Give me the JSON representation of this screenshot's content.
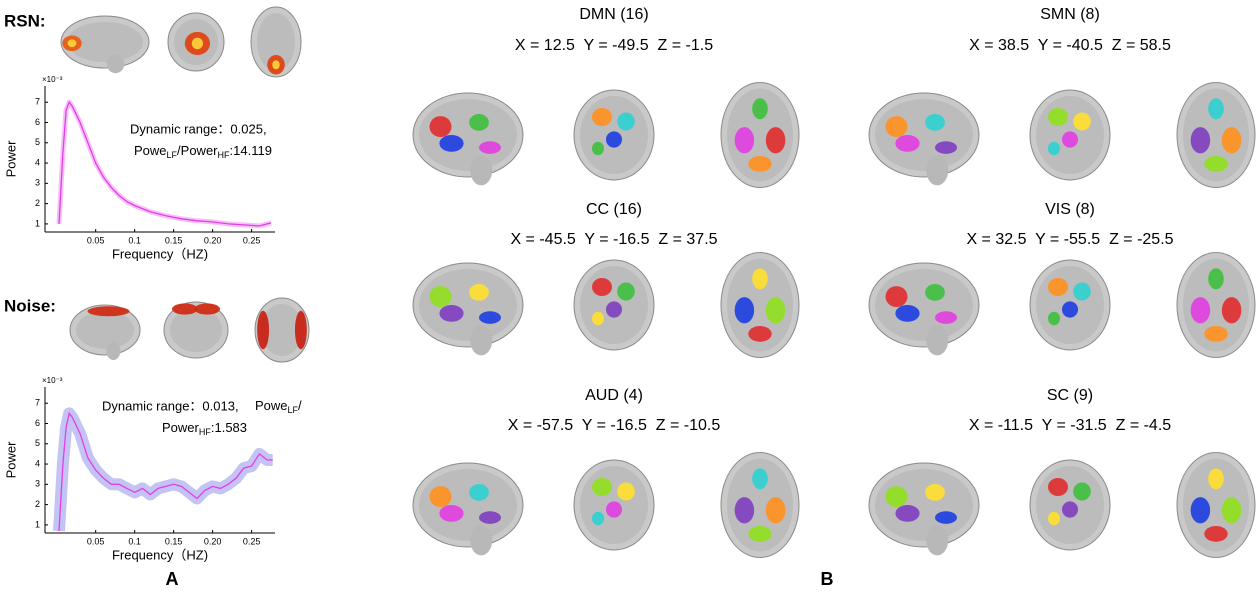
{
  "panel_labels": [
    "A",
    "B"
  ],
  "section_labels": [
    "RSN:",
    "Noise:"
  ],
  "chart_data": [
    {
      "type": "line",
      "y_label": "Power",
      "y_multiplier": "×10⁻³",
      "x_label": "Frequency（HZ)",
      "annotation": [
        "Dynamic range：0.025,"
      ],
      "annotation_ratio": [
        "Powe",
        "LF",
        "/Power",
        "HF",
        ":14.119"
      ],
      "xlim": [
        -0.015,
        0.28
      ],
      "ylim": [
        0.6,
        7.8
      ],
      "xticks": [
        0.05,
        0.1,
        0.15,
        {
          "value": 0.2,
          "label": "0.20"
        },
        0.25
      ],
      "yticks": [
        1,
        2,
        3,
        4,
        5,
        6,
        7
      ],
      "x": [
        0.003,
        0.008,
        0.012,
        0.016,
        0.02,
        0.03,
        0.04,
        0.05,
        0.06,
        0.07,
        0.08,
        0.09,
        0.1,
        0.12,
        0.14,
        0.16,
        0.18,
        0.2,
        0.22,
        0.24,
        0.26,
        0.27,
        0.275
      ],
      "series": [
        {
          "name": "RSN",
          "color": "#e23ee6",
          "band_color": "#f3a6f3",
          "values": [
            1.0,
            4.5,
            6.6,
            7.0,
            6.8,
            6.0,
            5.0,
            4.0,
            3.3,
            2.8,
            2.4,
            2.1,
            1.9,
            1.6,
            1.4,
            1.25,
            1.15,
            1.1,
            1.0,
            0.95,
            0.9,
            1.0,
            1.05
          ]
        }
      ]
    },
    {
      "type": "line",
      "y_label": "Power",
      "y_multiplier": "×10⁻³",
      "x_label": "Frequency（HZ)",
      "annotation": [
        "Dynamic range：0.013,"
      ],
      "annotation_ratio": [
        "Powe",
        "LF",
        "/",
        "",
        ""
      ],
      "annotation_ratio2": [
        "Power",
        "HF",
        ":1.583"
      ],
      "xlim": [
        -0.015,
        0.28
      ],
      "ylim": [
        0.6,
        7.8
      ],
      "xticks": [
        0.05,
        0.1,
        0.15,
        {
          "value": 0.2,
          "label": "0.20"
        },
        0.25
      ],
      "yticks": [
        1,
        2,
        3,
        4,
        5,
        6,
        7
      ],
      "x": [
        0.003,
        0.008,
        0.012,
        0.016,
        0.02,
        0.03,
        0.04,
        0.05,
        0.06,
        0.07,
        0.08,
        0.09,
        0.1,
        0.11,
        0.12,
        0.13,
        0.14,
        0.15,
        0.16,
        0.17,
        0.18,
        0.19,
        0.2,
        0.21,
        0.22,
        0.23,
        0.24,
        0.25,
        0.26,
        0.27,
        0.277
      ],
      "series": [
        {
          "name": "Noise",
          "color": "#e23ee6",
          "band_color": "#a9a9f0",
          "values": [
            0.7,
            4.0,
            5.8,
            6.5,
            6.3,
            5.5,
            4.3,
            3.7,
            3.3,
            3.0,
            3.0,
            2.8,
            2.6,
            2.8,
            2.5,
            2.8,
            2.9,
            3.0,
            2.9,
            2.6,
            2.3,
            2.7,
            2.9,
            2.8,
            3.0,
            3.3,
            3.8,
            3.9,
            4.5,
            4.2,
            4.2
          ]
        }
      ]
    }
  ],
  "networks": [
    {
      "name": "DMN (16)",
      "coords": "X = 12.5  Y = -49.5  Z = -1.5"
    },
    {
      "name": "SMN (8)",
      "coords": "X = 38.5  Y = -40.5  Z = 58.5"
    },
    {
      "name": "CC (16)",
      "coords": "X = -45.5  Y = -16.5  Z = 37.5"
    },
    {
      "name": "VIS (8)",
      "coords": "X = 32.5  Y = -55.5  Z = -25.5"
    },
    {
      "name": "AUD (4)",
      "coords": "X = -57.5  Y = -16.5  Z = -10.5"
    },
    {
      "name": "SC (9)",
      "coords": "X = -11.5  Y = -31.5  Z = -4.5"
    }
  ]
}
